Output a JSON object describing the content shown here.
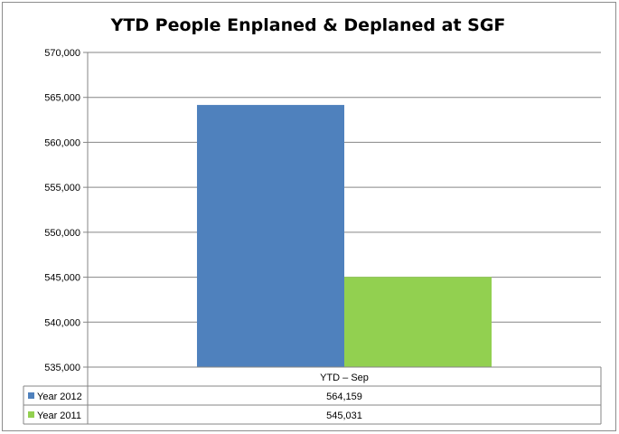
{
  "chart_data": {
    "type": "bar",
    "title": "YTD People Enplaned & Deplaned at SGF",
    "categories": [
      "YTD – Sep"
    ],
    "series": [
      {
        "name": "Year 2012",
        "values": [
          564159
        ],
        "value_labels": [
          "564,159"
        ],
        "color": "#4f81bd"
      },
      {
        "name": "Year 2011",
        "values": [
          545031
        ],
        "value_labels": [
          "545,031"
        ],
        "color": "#92d050"
      }
    ],
    "ylim": [
      535000,
      570000
    ],
    "yticks": [
      535000,
      540000,
      545000,
      550000,
      555000,
      560000,
      565000,
      570000
    ],
    "ytick_labels": [
      "535,000",
      "540,000",
      "545,000",
      "550,000",
      "555,000",
      "560,000",
      "565,000",
      "570,000"
    ],
    "grid": true,
    "legend": "data-table",
    "xlabel": "",
    "ylabel": ""
  },
  "colors": {
    "gridline": "#868686",
    "axis": "#868686"
  }
}
